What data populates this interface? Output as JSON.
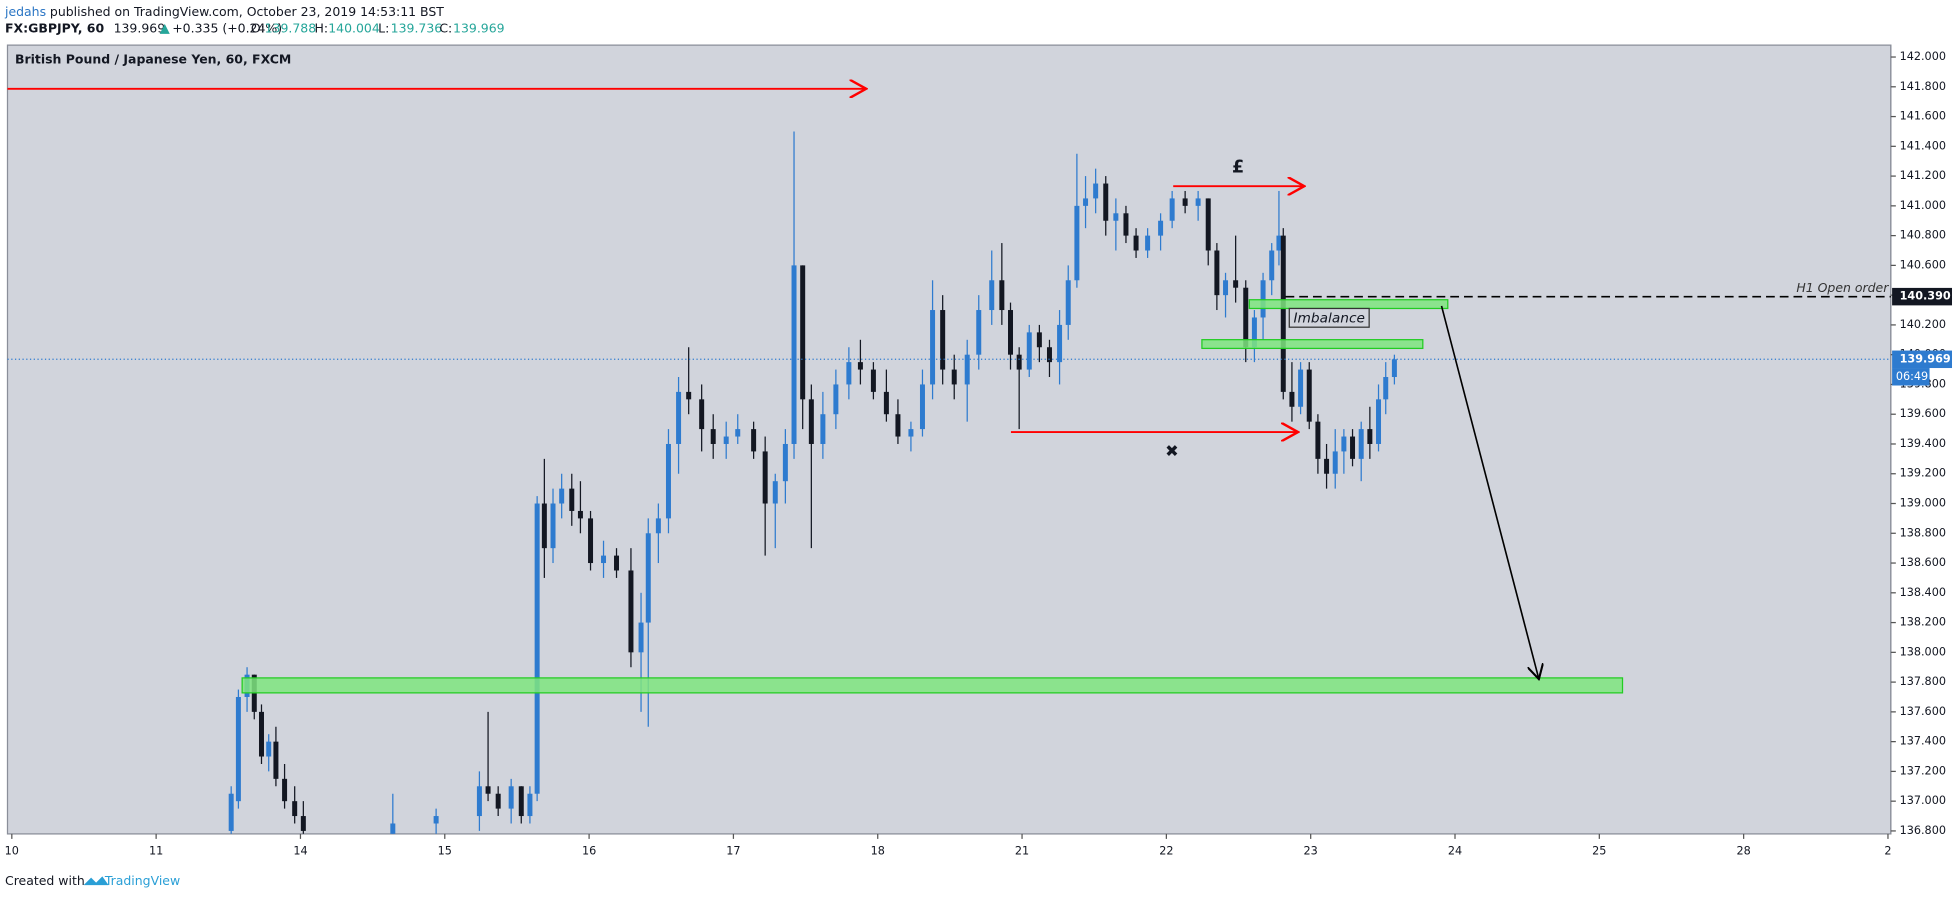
{
  "header": {
    "author": "jedahs",
    "published": "published on TradingView.com, October 23, 2019 14:53:11 BST",
    "symbol": "FX:GBPJPY, 60",
    "last": "139.969",
    "change": "+0.335 (+0.24%)",
    "ohlc": [
      {
        "label": "O:",
        "value": "139.788"
      },
      {
        "label": "H:",
        "value": "140.004"
      },
      {
        "label": "L:",
        "value": "139.736"
      },
      {
        "label": "C:",
        "value": "139.969"
      }
    ]
  },
  "footer": {
    "created": "Created with",
    "brand": "TradingView"
  },
  "chart_data": {
    "type": "candlestick",
    "title": "British Pound / Japanese Yen, 60, FXCM",
    "up_color": "#2e7bcf",
    "down_color": "#131722",
    "grid": false,
    "x": [
      1.52,
      1.57,
      1.63,
      1.68,
      1.73,
      1.78,
      1.83,
      1.89,
      1.96,
      2.02,
      2.64,
      2.94,
      3.24,
      3.3,
      3.37,
      3.46,
      3.53,
      3.59,
      3.64,
      3.69,
      3.75,
      3.81,
      3.88,
      3.94,
      4.01,
      4.1,
      4.19,
      4.29,
      4.36,
      4.41,
      4.48,
      4.55,
      4.62,
      4.69,
      4.78,
      4.86,
      4.95,
      5.03,
      5.14,
      5.22,
      5.29,
      5.36,
      5.42,
      5.48,
      5.54,
      5.62,
      5.71,
      5.8,
      5.88,
      5.97,
      6.06,
      6.14,
      6.23,
      6.31,
      6.38,
      6.45,
      6.53,
      6.62,
      6.7,
      6.79,
      6.86,
      6.92,
      6.98,
      7.05,
      7.12,
      7.19,
      7.26,
      7.32,
      7.38,
      7.44,
      7.51,
      7.58,
      7.65,
      7.72,
      7.79,
      7.87,
      7.96,
      8.04,
      8.13,
      8.22,
      8.29,
      8.35,
      8.41,
      8.48,
      8.55,
      8.61,
      8.67,
      8.73,
      8.78,
      8.81,
      8.87,
      8.93,
      8.99,
      9.05,
      9.11,
      9.17,
      9.23,
      9.29,
      9.35,
      9.41,
      9.47,
      9.52,
      9.58
    ],
    "open": [
      136.8,
      137.0,
      137.7,
      137.85,
      137.6,
      137.3,
      137.4,
      137.15,
      137.0,
      136.9,
      136.78,
      136.85,
      136.9,
      137.1,
      137.05,
      136.95,
      137.1,
      136.9,
      137.05,
      139.0,
      138.7,
      139.0,
      139.1,
      138.95,
      138.9,
      138.6,
      138.65,
      138.55,
      138.0,
      138.2,
      138.8,
      138.9,
      139.4,
      139.75,
      139.7,
      139.5,
      139.4,
      139.45,
      139.5,
      139.35,
      139.0,
      139.15,
      139.4,
      140.6,
      139.7,
      139.4,
      139.6,
      139.8,
      139.95,
      139.9,
      139.75,
      139.6,
      139.45,
      139.5,
      139.8,
      140.3,
      139.9,
      139.8,
      140.0,
      140.3,
      140.5,
      140.3,
      140.0,
      139.9,
      140.15,
      140.05,
      139.95,
      140.2,
      140.5,
      141.0,
      141.05,
      141.15,
      140.9,
      140.95,
      140.8,
      140.7,
      140.8,
      140.9,
      141.05,
      141.0,
      141.05,
      140.7,
      140.4,
      140.5,
      140.45,
      140.05,
      140.25,
      140.5,
      140.7,
      140.8,
      139.75,
      139.65,
      139.9,
      139.55,
      139.3,
      139.2,
      139.35,
      139.45,
      139.3,
      139.5,
      139.4,
      139.7,
      139.85
    ],
    "high": [
      137.1,
      137.75,
      137.9,
      137.85,
      137.65,
      137.45,
      137.5,
      137.25,
      137.1,
      137.0,
      137.05,
      136.95,
      137.2,
      137.6,
      137.1,
      137.15,
      137.1,
      137.1,
      139.05,
      139.3,
      139.1,
      139.2,
      139.2,
      139.15,
      138.95,
      138.75,
      138.7,
      138.7,
      138.4,
      138.9,
      139.0,
      139.5,
      139.85,
      140.05,
      139.8,
      139.6,
      139.55,
      139.6,
      139.55,
      139.45,
      139.2,
      139.5,
      141.5,
      140.6,
      139.8,
      139.75,
      139.9,
      140.05,
      140.1,
      139.95,
      139.9,
      139.7,
      139.55,
      139.9,
      140.5,
      140.4,
      140.0,
      140.1,
      140.4,
      140.7,
      140.75,
      140.35,
      140.05,
      140.2,
      140.2,
      140.1,
      140.3,
      140.6,
      141.35,
      141.2,
      141.25,
      141.2,
      141.05,
      141.0,
      140.85,
      140.85,
      140.95,
      141.1,
      141.1,
      141.1,
      141.05,
      140.75,
      140.55,
      140.8,
      140.5,
      140.3,
      140.55,
      140.75,
      141.1,
      140.85,
      139.95,
      139.95,
      139.95,
      139.6,
      139.4,
      139.5,
      139.5,
      139.5,
      139.55,
      139.65,
      139.8,
      139.95,
      140.0
    ],
    "low": [
      136.78,
      136.95,
      137.6,
      137.55,
      137.25,
      137.2,
      137.1,
      136.95,
      136.85,
      136.78,
      136.78,
      136.78,
      136.8,
      137.0,
      136.9,
      136.85,
      136.85,
      136.85,
      137.0,
      138.5,
      138.6,
      138.9,
      138.85,
      138.8,
      138.55,
      138.5,
      138.5,
      137.9,
      137.6,
      137.5,
      138.6,
      138.8,
      139.2,
      139.6,
      139.35,
      139.3,
      139.3,
      139.4,
      139.3,
      138.65,
      138.7,
      139.0,
      139.3,
      139.5,
      138.7,
      139.3,
      139.5,
      139.7,
      139.8,
      139.7,
      139.55,
      139.4,
      139.35,
      139.45,
      139.7,
      139.8,
      139.7,
      139.55,
      139.9,
      140.2,
      140.2,
      139.9,
      139.5,
      139.85,
      139.95,
      139.85,
      139.8,
      140.1,
      140.45,
      140.85,
      140.95,
      140.8,
      140.7,
      140.75,
      140.65,
      140.65,
      140.7,
      140.85,
      140.95,
      140.9,
      140.6,
      140.3,
      140.25,
      140.35,
      139.95,
      139.95,
      140.1,
      140.4,
      140.6,
      139.7,
      139.55,
      139.6,
      139.5,
      139.2,
      139.1,
      139.1,
      139.2,
      139.25,
      139.15,
      139.3,
      139.35,
      139.6,
      139.8
    ],
    "close": [
      137.05,
      137.7,
      137.85,
      137.6,
      137.3,
      137.4,
      137.15,
      137.0,
      136.9,
      136.8,
      136.85,
      136.9,
      137.1,
      137.05,
      136.95,
      137.1,
      136.9,
      137.05,
      139.0,
      138.7,
      139.0,
      139.1,
      138.95,
      138.9,
      138.6,
      138.65,
      138.55,
      138.0,
      138.2,
      138.8,
      138.9,
      139.4,
      139.75,
      139.7,
      139.5,
      139.4,
      139.45,
      139.5,
      139.35,
      139.0,
      139.15,
      139.4,
      140.6,
      139.7,
      139.4,
      139.6,
      139.8,
      139.95,
      139.9,
      139.75,
      139.6,
      139.45,
      139.5,
      139.8,
      140.3,
      139.9,
      139.8,
      140.0,
      140.3,
      140.5,
      140.3,
      140.0,
      139.9,
      140.15,
      140.05,
      139.95,
      140.2,
      140.5,
      141.0,
      141.05,
      141.15,
      140.9,
      140.95,
      140.8,
      140.7,
      140.8,
      140.9,
      141.05,
      141.0,
      141.05,
      140.7,
      140.4,
      140.5,
      140.45,
      140.05,
      140.25,
      140.5,
      140.7,
      140.8,
      139.75,
      139.65,
      139.9,
      139.55,
      139.3,
      139.2,
      139.35,
      139.45,
      139.3,
      139.5,
      139.4,
      139.7,
      139.85,
      139.969
    ],
    "xlim": [
      -0.03,
      13.02
    ],
    "xticks": [
      {
        "value": 0,
        "label": "10"
      },
      {
        "value": 1,
        "label": "11"
      },
      {
        "value": 2,
        "label": "14"
      },
      {
        "value": 3,
        "label": "15"
      },
      {
        "value": 4,
        "label": "16"
      },
      {
        "value": 5,
        "label": "17"
      },
      {
        "value": 6,
        "label": "18"
      },
      {
        "value": 7,
        "label": "21"
      },
      {
        "value": 8,
        "label": "22"
      },
      {
        "value": 9,
        "label": "23"
      },
      {
        "value": 10,
        "label": "24"
      },
      {
        "value": 11,
        "label": "25"
      },
      {
        "value": 12,
        "label": "28"
      },
      {
        "value": 13,
        "label": "2"
      }
    ],
    "ylim": [
      136.78,
      142.08
    ],
    "yticks": [
      {
        "value": 136.8,
        "label": "136.800"
      },
      {
        "value": 137.0,
        "label": "137.000"
      },
      {
        "value": 137.2,
        "label": "137.200"
      },
      {
        "value": 137.4,
        "label": "137.400"
      },
      {
        "value": 137.6,
        "label": "137.600"
      },
      {
        "value": 137.8,
        "label": "137.800"
      },
      {
        "value": 138.0,
        "label": "138.000"
      },
      {
        "value": 138.2,
        "label": "138.200"
      },
      {
        "value": 138.4,
        "label": "138.400"
      },
      {
        "value": 138.6,
        "label": "138.600"
      },
      {
        "value": 138.8,
        "label": "138.800"
      },
      {
        "value": 139.0,
        "label": "139.000"
      },
      {
        "value": 139.2,
        "label": "139.200"
      },
      {
        "value": 139.4,
        "label": "139.400"
      },
      {
        "value": 139.6,
        "label": "139.600"
      },
      {
        "value": 139.8,
        "label": "139.800"
      },
      {
        "value": 140.0,
        "label": "140.000"
      },
      {
        "value": 140.2,
        "label": "140.200"
      },
      {
        "value": 140.4,
        "label": "140.400"
      },
      {
        "value": 140.6,
        "label": "140.600"
      },
      {
        "value": 140.8,
        "label": "140.800"
      },
      {
        "value": 141.0,
        "label": "141.000"
      },
      {
        "value": 141.2,
        "label": "141.200"
      },
      {
        "value": 141.4,
        "label": "141.400"
      },
      {
        "value": 141.6,
        "label": "141.600"
      },
      {
        "value": 141.8,
        "label": "141.800"
      },
      {
        "value": 142.0,
        "label": "142.000"
      }
    ],
    "last_price": 139.969,
    "countdown": "06:49",
    "open_order": {
      "value": 140.39,
      "label": "140.390"
    },
    "open_order_note": "H1 Open order",
    "annotations": [
      "£",
      "✖",
      "Imbalance"
    ]
  }
}
